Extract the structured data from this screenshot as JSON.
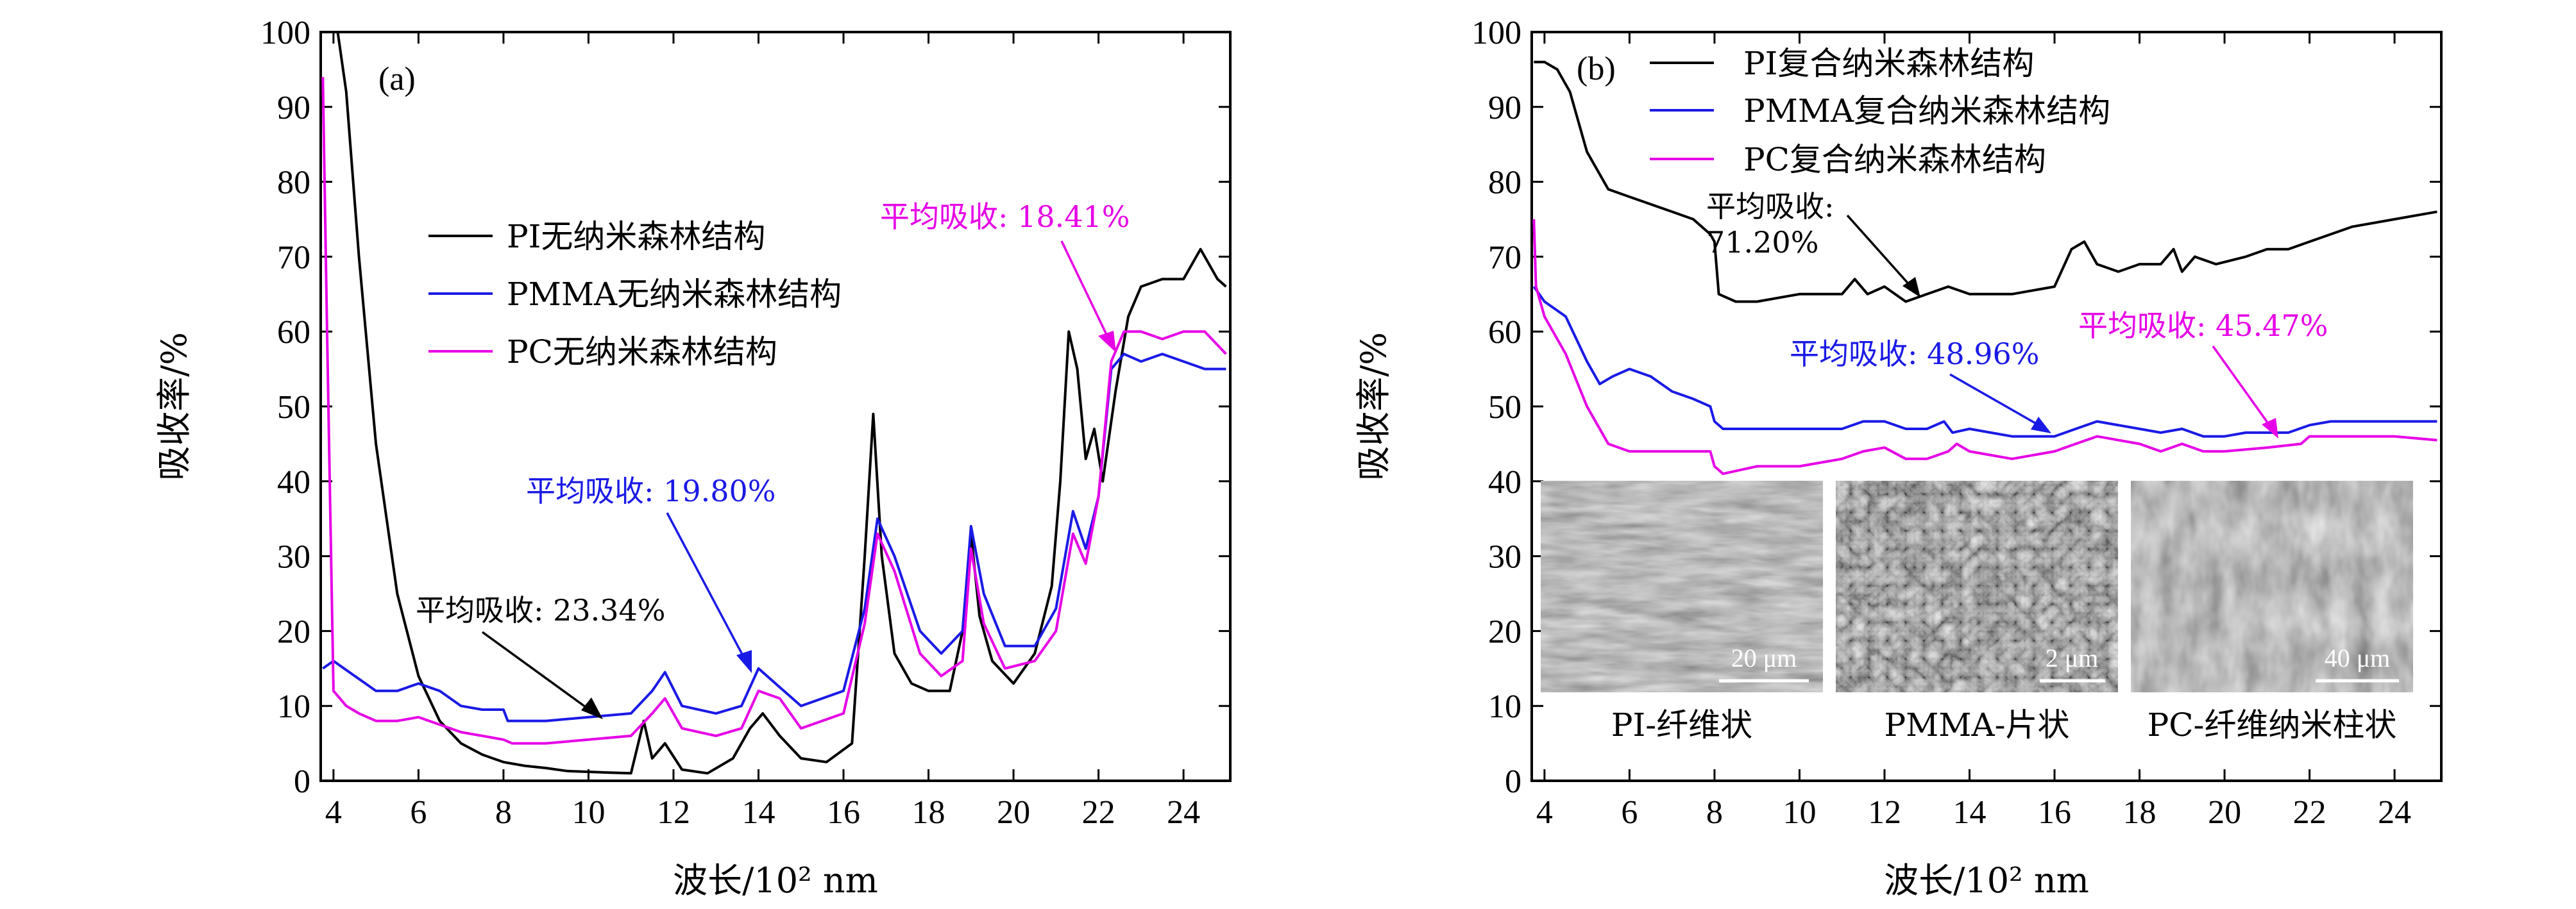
{
  "chart_data": [
    {
      "panel_label": "(a)",
      "type": "line",
      "xlabel": "波长/10² nm",
      "ylabel": "吸收率/%",
      "xlim": [
        3.7,
        25.1
      ],
      "ylim": [
        0,
        100
      ],
      "xticks": [
        "4",
        "6",
        "8",
        "10",
        "12",
        "14",
        "16",
        "18",
        "20",
        "22",
        "24"
      ],
      "yticks": [
        "0",
        "10",
        "20",
        "30",
        "40",
        "50",
        "60",
        "70",
        "80",
        "90",
        "100"
      ],
      "series": [
        {
          "name": "PI无纳米森林结构",
          "color": "#000000",
          "x": [
            3.75,
            4.1,
            4.3,
            4.6,
            5.0,
            5.5,
            6.0,
            6.5,
            7.0,
            7.5,
            8.0,
            8.5,
            9.0,
            9.5,
            10.0,
            10.5,
            11.0,
            11.3,
            11.5,
            11.8,
            12.2,
            12.8,
            13.4,
            13.8,
            14.1,
            14.5,
            15.0,
            15.6,
            16.2,
            16.5,
            16.7,
            16.9,
            17.2,
            17.6,
            18.0,
            18.5,
            18.8,
            19.0,
            19.2,
            19.5,
            20.0,
            20.5,
            20.9,
            21.1,
            21.3,
            21.5,
            21.7,
            21.9,
            22.1,
            22.4,
            22.7,
            23.0,
            23.5,
            24.0,
            24.4,
            24.8,
            25.0
          ],
          "y": [
            100,
            100,
            92,
            70,
            45,
            25,
            14,
            8,
            5,
            3.5,
            2.5,
            2,
            1.7,
            1.3,
            1.2,
            1.1,
            1.0,
            8,
            3,
            5,
            1.5,
            1.0,
            3,
            7,
            9,
            6,
            3,
            2.5,
            5,
            30,
            49,
            30,
            17,
            13,
            12,
            12,
            20,
            33,
            22,
            16,
            13,
            17,
            26,
            40,
            60,
            55,
            43,
            47,
            40,
            52,
            62,
            66,
            67,
            67,
            71,
            67,
            66
          ]
        },
        {
          "name": "PMMA无纳米森林结构",
          "color": "#1a1ae6",
          "x": [
            3.75,
            4.0,
            4.5,
            5.0,
            5.5,
            6.0,
            6.5,
            7.0,
            7.5,
            8.0,
            8.1,
            9.0,
            10.0,
            11.0,
            11.5,
            11.8,
            12.2,
            13.0,
            13.6,
            14.0,
            14.4,
            15.0,
            16.0,
            16.5,
            16.8,
            17.2,
            17.8,
            18.3,
            18.8,
            19.0,
            19.3,
            19.8,
            20.5,
            21.0,
            21.4,
            21.7,
            22.0,
            22.3,
            22.6,
            23.0,
            23.5,
            24.0,
            24.5,
            25.0
          ],
          "y": [
            15,
            16,
            14,
            12,
            12,
            13,
            12,
            10,
            9.5,
            9.5,
            8,
            8,
            8.5,
            9,
            12,
            14.5,
            10,
            9,
            10,
            15,
            13,
            10,
            12,
            23,
            35,
            30,
            20,
            17,
            20,
            34,
            25,
            18,
            18,
            23,
            36,
            31,
            38,
            55,
            57,
            56,
            57,
            56,
            55,
            55
          ]
        },
        {
          "name": "PC无纳米森林结构",
          "color": "#e600e6",
          "x": [
            3.75,
            3.85,
            4.0,
            4.3,
            4.6,
            5.0,
            5.5,
            6.0,
            6.5,
            7.0,
            7.5,
            8.0,
            8.2,
            9.0,
            10.0,
            11.0,
            11.5,
            11.8,
            12.2,
            13.0,
            13.6,
            14.0,
            14.5,
            15.0,
            16.0,
            16.5,
            16.8,
            17.2,
            17.8,
            18.3,
            18.8,
            19.0,
            19.3,
            19.8,
            20.5,
            21.0,
            21.4,
            21.7,
            22.0,
            22.3,
            22.6,
            23.0,
            23.5,
            24.0,
            24.5,
            25.0
          ],
          "y": [
            94,
            60,
            12,
            10,
            9,
            8,
            8,
            8.5,
            7.5,
            6.5,
            6,
            5.5,
            5,
            5,
            5.5,
            6,
            9,
            11,
            7,
            6,
            7,
            12,
            11,
            7,
            9,
            21,
            33,
            28,
            17,
            14,
            16,
            31,
            21,
            15,
            16,
            20,
            33,
            29,
            38,
            56,
            60,
            60,
            59,
            60,
            60,
            57
          ]
        }
      ],
      "annotations": [
        {
          "text": "平均吸收: 18.41%",
          "color": "#e600e6"
        },
        {
          "text": "平均吸收: 19.80%",
          "color": "#1a1ae6"
        },
        {
          "text": "平均吸收: 23.34%",
          "color": "#000000"
        }
      ]
    },
    {
      "panel_label": "(b)",
      "type": "line",
      "xlabel": "波长/10² nm",
      "ylabel": "吸收率/%",
      "xlim": [
        3.7,
        25.1
      ],
      "ylim": [
        0,
        100
      ],
      "xticks": [
        "4",
        "6",
        "8",
        "10",
        "12",
        "14",
        "16",
        "18",
        "20",
        "22",
        "24"
      ],
      "yticks": [
        "0",
        "10",
        "20",
        "30",
        "40",
        "50",
        "60",
        "70",
        "80",
        "90",
        "100"
      ],
      "series": [
        {
          "name": "PI复合纳米森林结构",
          "color": "#000000",
          "x": [
            3.75,
            4.0,
            4.3,
            4.6,
            5.0,
            5.5,
            6.0,
            6.5,
            7.0,
            7.5,
            7.9,
            8.0,
            8.1,
            8.5,
            9.0,
            10.0,
            11.0,
            11.3,
            11.6,
            12.0,
            12.5,
            13.0,
            13.5,
            14.0,
            15.0,
            16.0,
            16.4,
            16.7,
            17.0,
            17.5,
            18.0,
            18.5,
            18.8,
            19.0,
            19.3,
            19.8,
            20.5,
            21.0,
            21.5,
            22.0,
            23.0,
            24.0,
            25.0
          ],
          "y": [
            96,
            96,
            95,
            92,
            84,
            79,
            78,
            77,
            76,
            75,
            73,
            72,
            65,
            64,
            64,
            65,
            65,
            67,
            65,
            66,
            64,
            65,
            66,
            65,
            65,
            66,
            71,
            72,
            69,
            68,
            69,
            69,
            71,
            68,
            70,
            69,
            70,
            71,
            71,
            72,
            74,
            75,
            76
          ]
        },
        {
          "name": "PMMA复合纳米森林结构",
          "color": "#1a1ae6",
          "x": [
            3.75,
            4.0,
            4.5,
            5.0,
            5.3,
            5.6,
            6.0,
            6.5,
            7.0,
            7.5,
            7.9,
            8.0,
            8.2,
            9.0,
            10.0,
            11.0,
            11.5,
            12.0,
            12.5,
            13.0,
            13.4,
            13.6,
            14.0,
            14.5,
            15.0,
            16.0,
            16.5,
            17.0,
            18.0,
            18.5,
            19.0,
            19.5,
            20.0,
            20.5,
            21.0,
            21.5,
            22.0,
            22.5,
            23.0,
            24.0,
            25.0
          ],
          "y": [
            66,
            64,
            62,
            56,
            53,
            54,
            55,
            54,
            52,
            51,
            50,
            48,
            47,
            47,
            47,
            47,
            48,
            48,
            47,
            47,
            48,
            46.5,
            47,
            46.5,
            46,
            46,
            47,
            48,
            47,
            46.5,
            47,
            46,
            46,
            46.5,
            46.5,
            46.5,
            47.5,
            48,
            48,
            48,
            48
          ]
        },
        {
          "name": "PC复合纳米森林结构",
          "color": "#e600e6",
          "x": [
            3.75,
            3.8,
            4.0,
            4.5,
            5.0,
            5.5,
            6.0,
            7.0,
            7.9,
            8.0,
            8.2,
            9.0,
            10.0,
            11.0,
            11.5,
            12.0,
            12.5,
            13.0,
            13.5,
            13.7,
            14.0,
            15.0,
            16.0,
            16.5,
            17.0,
            18.0,
            18.5,
            19.0,
            19.5,
            20.0,
            21.0,
            21.8,
            22.0,
            22.5,
            23.0,
            24.0,
            25.0
          ],
          "y": [
            75,
            66,
            62,
            57,
            50,
            45,
            44,
            44,
            44,
            42,
            41,
            42,
            42,
            43,
            44,
            44.5,
            43,
            43,
            44,
            45,
            44,
            43,
            44,
            45,
            46,
            45,
            44,
            45,
            44,
            44,
            44.5,
            45,
            46,
            46,
            46,
            46,
            45.5
          ]
        }
      ],
      "annotations": [
        {
          "text": "平均吸收:",
          "text2": "71.20%",
          "color": "#000000"
        },
        {
          "text": "平均吸收: 48.96%",
          "color": "#1a1ae6"
        },
        {
          "text": "平均吸收: 45.47%",
          "color": "#e600e6"
        }
      ],
      "insets": [
        {
          "caption": "PI-纤维状",
          "scale_bar": "20 μm"
        },
        {
          "caption": "PMMA-片状",
          "scale_bar": "2 μm"
        },
        {
          "caption": "PC-纤维纳米柱状",
          "scale_bar": "40 μm"
        }
      ]
    }
  ]
}
